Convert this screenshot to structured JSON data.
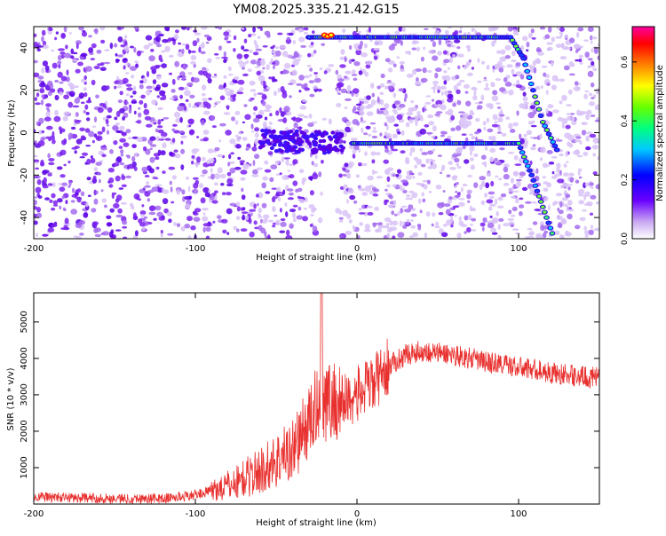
{
  "page": {
    "title": "YM08.2025.335.21.42.G15"
  },
  "chart_data": [
    {
      "type": "heatmap",
      "title": "YM08.2025.335.21.42.G15",
      "xlabel": "Height of straight line (km)",
      "ylabel": "Frequency (Hz)",
      "xlim": [
        -200,
        150
      ],
      "ylim": [
        -50,
        50
      ],
      "xticks": [
        -200,
        -100,
        0,
        100
      ],
      "yticks": [
        -40,
        -20,
        0,
        20,
        40
      ],
      "xtick_labels": [
        "-200",
        "-100",
        "0",
        "100"
      ],
      "ytick_labels": [
        "-40",
        "-20",
        "0",
        "20",
        "40"
      ],
      "colorbar": {
        "label": "Normalized spectral amplitude",
        "range": [
          0.0,
          0.72
        ],
        "ticks": [
          0.0,
          0.2,
          0.4,
          0.6
        ],
        "tick_labels": [
          "0.0",
          "0.2",
          "0.4",
          "0.6"
        ]
      },
      "features": {
        "upper_trace": {
          "x_start": -30,
          "x_flat_end": 95,
          "freq_flat": 45,
          "x_end": 125,
          "freq_end": -10
        },
        "lower_trace": {
          "x_start": -60,
          "x_flat_start": -3,
          "x_flat_end": 100,
          "freq_flat": -5,
          "x_end": 122,
          "freq_end": -50
        },
        "gap_x": [
          -25,
          -12
        ]
      },
      "grid": false
    },
    {
      "type": "line",
      "xlabel": "Height of straight line (km)",
      "ylabel": "SNR (10 * v/v)",
      "xlim": [
        -200,
        150
      ],
      "ylim": [
        0,
        5800
      ],
      "xticks": [
        -200,
        -100,
        0,
        100
      ],
      "yticks": [
        1000,
        2000,
        3000,
        4000,
        5000
      ],
      "xtick_labels": [
        "-200",
        "-100",
        "0",
        "100"
      ],
      "ytick_labels": [
        "1000",
        "2000",
        "3000",
        "4000",
        "5000"
      ],
      "series": [
        {
          "color": "#e8302e",
          "envelope": {
            "x": [
              -200,
              -180,
              -150,
              -120,
              -100,
              -80,
              -60,
              -40,
              -30,
              -22,
              -18,
              -10,
              0,
              10,
              20,
              30,
              40,
              50,
              60,
              70,
              80,
              90,
              100,
              110,
              120,
              130,
              140,
              150
            ],
            "y": [
              200,
              180,
              150,
              150,
              250,
              500,
              900,
              1500,
              2200,
              3000,
              2800,
              2800,
              3000,
              3300,
              3800,
              4100,
              4200,
              4150,
              4100,
              4000,
              3900,
              3850,
              3750,
              3700,
              3600,
              3550,
              3500,
              3450
            ]
          },
          "spike": {
            "x": -22,
            "y": 5800
          }
        }
      ],
      "grid": false
    }
  ]
}
